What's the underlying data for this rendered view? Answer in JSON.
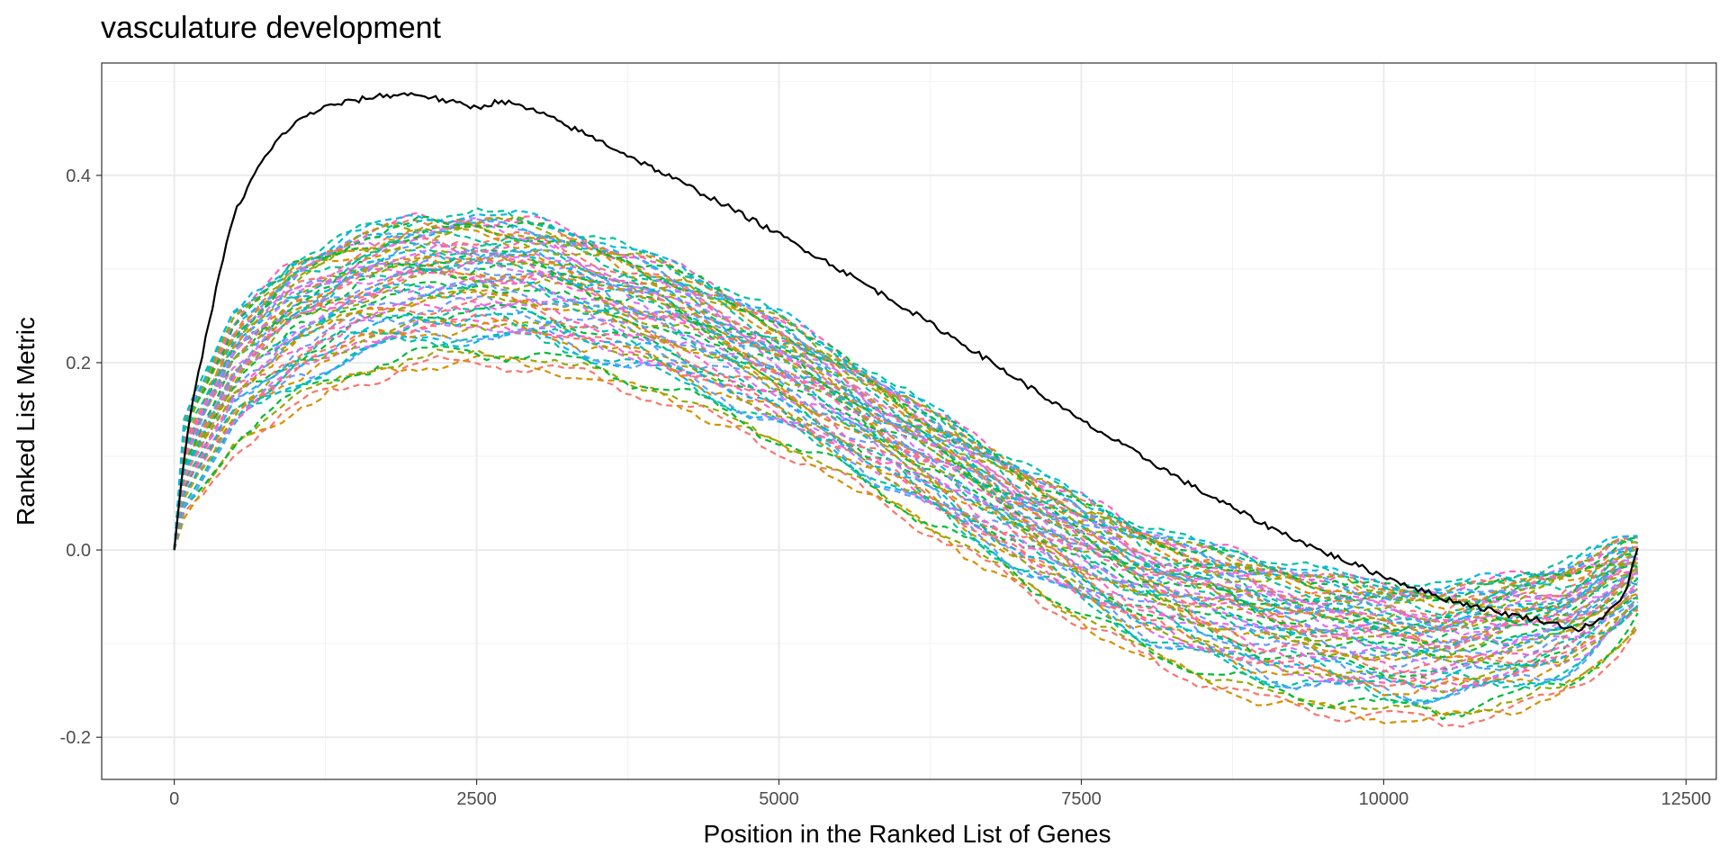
{
  "chart_data": {
    "type": "line",
    "title": "vasculature development",
    "xlabel": "Position in the Ranked List of Genes",
    "ylabel": "Ranked List Metric",
    "xlim": [
      -600,
      12750
    ],
    "ylim": [
      -0.245,
      0.52
    ],
    "x_ticks": [
      0,
      2500,
      5000,
      7500,
      10000,
      12500
    ],
    "x_tick_labels": [
      "0",
      "2500",
      "5000",
      "7500",
      "10000",
      "12500"
    ],
    "y_ticks": [
      -0.2,
      0.0,
      0.2,
      0.4
    ],
    "y_tick_labels": [
      "-0.2",
      "0.0",
      "0.2",
      "0.4"
    ],
    "grid": true,
    "legend": "none",
    "observed": {
      "color": "#000000",
      "style": "solid",
      "x": [
        0,
        100,
        200,
        300,
        400,
        500,
        700,
        900,
        1100,
        1300,
        1500,
        1700,
        2000,
        2300,
        2500,
        2700,
        3000,
        3500,
        4000,
        4500,
        5000,
        5500,
        6000,
        6500,
        7000,
        7500,
        8000,
        8500,
        9000,
        9500,
        10000,
        10500,
        11000,
        11300,
        11600,
        11800,
        12000,
        12100
      ],
      "y": [
        0.0,
        0.12,
        0.19,
        0.25,
        0.31,
        0.36,
        0.41,
        0.445,
        0.465,
        0.475,
        0.48,
        0.485,
        0.487,
        0.478,
        0.472,
        0.48,
        0.468,
        0.438,
        0.405,
        0.372,
        0.337,
        0.3,
        0.262,
        0.222,
        0.18,
        0.138,
        0.1,
        0.062,
        0.028,
        -0.002,
        -0.028,
        -0.052,
        -0.068,
        -0.075,
        -0.085,
        -0.075,
        -0.045,
        0.002
      ]
    },
    "permutations": {
      "count": 60,
      "style": "dashed",
      "colors": [
        "#F8766D",
        "#D39200",
        "#93AA00",
        "#00BA38",
        "#00C19F",
        "#00B9E3",
        "#619CFF",
        "#DB72FB",
        "#FF61C3"
      ],
      "upper_envelope": {
        "x": [
          0,
          500,
          1000,
          1500,
          2000,
          2500,
          3000,
          3500,
          4000,
          4500,
          5000,
          5500,
          6000,
          6500,
          7000,
          7500,
          8000,
          8500,
          9000,
          9500,
          10000,
          10500,
          11000,
          11500,
          11800,
          12000,
          12100
        ],
        "y": [
          0.12,
          0.25,
          0.31,
          0.34,
          0.355,
          0.36,
          0.352,
          0.332,
          0.31,
          0.282,
          0.25,
          0.21,
          0.17,
          0.13,
          0.09,
          0.055,
          0.025,
          0.005,
          -0.01,
          -0.025,
          -0.035,
          -0.04,
          -0.03,
          -0.015,
          0.0,
          0.012,
          0.01
        ]
      },
      "lower_envelope": {
        "x": [
          0,
          500,
          1000,
          1500,
          2000,
          2500,
          3000,
          3500,
          4000,
          4500,
          5000,
          5500,
          6000,
          6500,
          7000,
          7500,
          8000,
          8500,
          9000,
          9500,
          10000,
          10500,
          11000,
          11500,
          11800,
          12000,
          12100
        ],
        "y": [
          0.0,
          0.08,
          0.12,
          0.15,
          0.165,
          0.17,
          0.165,
          0.152,
          0.135,
          0.11,
          0.082,
          0.05,
          0.015,
          -0.025,
          -0.065,
          -0.105,
          -0.14,
          -0.168,
          -0.19,
          -0.2,
          -0.208,
          -0.21,
          -0.2,
          -0.18,
          -0.15,
          -0.12,
          -0.1
        ]
      }
    }
  }
}
